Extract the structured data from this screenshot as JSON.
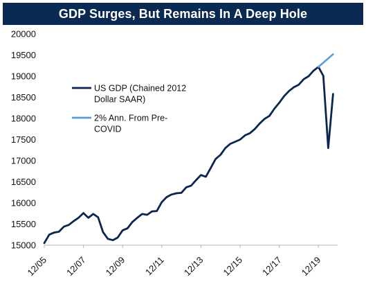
{
  "chart_data": {
    "type": "line",
    "title": "GDP Surges, But Remains In A Deep Hole",
    "xlabel": "",
    "ylabel": "",
    "ylim": [
      15000,
      20000
    ],
    "yticks": [
      "15000",
      "15500",
      "16000",
      "16500",
      "17000",
      "17500",
      "18000",
      "18500",
      "19000",
      "19500",
      "20000"
    ],
    "xticks": [
      "12/05",
      "12/07",
      "12/09",
      "12/11",
      "12/13",
      "12/15",
      "12/17",
      "12/19"
    ],
    "grid": false,
    "legend_position": "left-middle",
    "series": [
      {
        "name": "US GDP (Chained 2012 Dollar SAAR)",
        "legend_lines": [
          "US GDP (Chained 2012",
          "Dollar SAAR)"
        ],
        "color": "#0b2550",
        "x": [
          "12/05",
          "03/06",
          "06/06",
          "09/06",
          "12/06",
          "03/07",
          "06/07",
          "09/07",
          "12/07",
          "03/08",
          "06/08",
          "09/08",
          "12/08",
          "03/09",
          "06/09",
          "09/09",
          "12/09",
          "03/10",
          "06/10",
          "09/10",
          "12/10",
          "03/11",
          "06/11",
          "09/11",
          "12/11",
          "03/12",
          "06/12",
          "09/12",
          "12/12",
          "03/13",
          "06/13",
          "09/13",
          "12/13",
          "03/14",
          "06/14",
          "09/14",
          "12/14",
          "03/15",
          "06/15",
          "09/15",
          "12/15",
          "03/16",
          "06/16",
          "09/16",
          "12/16",
          "03/17",
          "06/17",
          "09/17",
          "12/17",
          "03/18",
          "06/18",
          "09/18",
          "12/18",
          "03/19",
          "06/19",
          "09/19",
          "12/19",
          "03/20",
          "06/20",
          "09/20"
        ],
        "values": [
          15050,
          15250,
          15300,
          15320,
          15440,
          15480,
          15570,
          15650,
          15760,
          15650,
          15740,
          15660,
          15310,
          15150,
          15120,
          15180,
          15350,
          15400,
          15550,
          15650,
          15740,
          15720,
          15800,
          15810,
          16020,
          16140,
          16200,
          16230,
          16240,
          16370,
          16410,
          16540,
          16660,
          16620,
          16830,
          17040,
          17140,
          17300,
          17400,
          17450,
          17500,
          17600,
          17650,
          17750,
          17880,
          17990,
          18060,
          18230,
          18370,
          18530,
          18650,
          18740,
          18800,
          18930,
          19000,
          19130,
          19220,
          19010,
          17300,
          18580
        ]
      },
      {
        "name": "2% Ann. From Pre-COVID",
        "legend_lines": [
          "2% Ann. From Pre-",
          "COVID"
        ],
        "color": "#5b9bd5",
        "x": [
          "12/19",
          "03/20",
          "06/20",
          "09/20"
        ],
        "values": [
          19220,
          19320,
          19420,
          19520
        ]
      }
    ]
  }
}
